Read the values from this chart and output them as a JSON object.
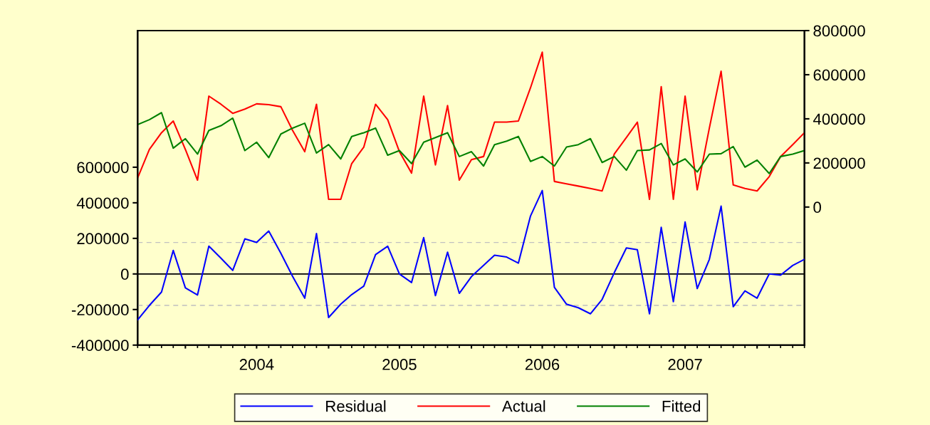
{
  "chart_data": {
    "type": "line",
    "x": [
      "2003-09",
      "2003-10",
      "2003-11",
      "2003-12",
      "2004-01",
      "2004-02",
      "2004-03",
      "2004-04",
      "2004-05",
      "2004-06",
      "2004-07",
      "2004-08",
      "2004-09",
      "2004-10",
      "2004-11",
      "2004-12",
      "2005-01",
      "2005-02",
      "2005-03",
      "2005-04",
      "2005-05",
      "2005-06",
      "2005-07",
      "2005-08",
      "2005-09",
      "2005-10",
      "2005-11",
      "2005-12",
      "2006-01",
      "2006-02",
      "2006-03",
      "2006-04",
      "2006-05",
      "2006-06",
      "2006-07",
      "2006-08",
      "2006-09",
      "2006-10",
      "2006-11",
      "2006-12",
      "2007-01",
      "2007-02",
      "2007-03",
      "2007-04",
      "2007-05",
      "2007-06",
      "2007-07",
      "2007-08",
      "2007-09",
      "2007-10",
      "2007-11",
      "2007-12",
      "2008-01",
      "2008-02",
      "2008-03",
      "2008-04",
      "2008-05"
    ],
    "series": [
      {
        "name": "Residual",
        "color": "#0000ff",
        "values": [
          -258000,
          -177000,
          -102000,
          132000,
          -78000,
          -118000,
          156000,
          88000,
          20000,
          197000,
          177000,
          241000,
          116000,
          -14000,
          -136000,
          227000,
          -245000,
          -170000,
          -116000,
          -68000,
          109000,
          156000,
          0,
          -48000,
          204000,
          -122000,
          122000,
          -109000,
          -15000,
          48000,
          105000,
          95000,
          61000,
          326000,
          469000,
          -75000,
          -170000,
          -190000,
          -224000,
          -143000,
          7000,
          146000,
          136000,
          -224000,
          262000,
          -156000,
          292000,
          -82000,
          82000,
          381000,
          -184000,
          -95000,
          -136000,
          0,
          -7000,
          48000,
          82000
        ]
      },
      {
        "name": "Actual",
        "color": "#ff0000",
        "axis": "y2",
        "values": [
          132000,
          261000,
          337000,
          390000,
          261000,
          122000,
          503000,
          466000,
          425000,
          444000,
          468000,
          464000,
          455000,
          347000,
          251000,
          466000,
          35000,
          35000,
          197000,
          272000,
          466000,
          396000,
          251000,
          154000,
          503000,
          191000,
          460000,
          122000,
          215000,
          229000,
          385000,
          385000,
          390000,
          541000,
          702000,
          116000,
          105000,
          95000,
          84000,
          73000,
          240000,
          315000,
          385000,
          35000,
          546000,
          35000,
          503000,
          78000,
          358000,
          616000,
          100000,
          84000,
          73000,
          138000,
          229000,
          283000,
          337000
        ]
      },
      {
        "name": "Fitted",
        "color": "#008000",
        "axis": "y2",
        "values": [
          374000,
          396000,
          428000,
          267000,
          310000,
          240000,
          347000,
          369000,
          403000,
          256000,
          294000,
          224000,
          331000,
          358000,
          380000,
          245000,
          283000,
          218000,
          320000,
          337000,
          358000,
          235000,
          256000,
          197000,
          294000,
          315000,
          337000,
          229000,
          251000,
          186000,
          283000,
          299000,
          320000,
          207000,
          229000,
          186000,
          272000,
          283000,
          310000,
          202000,
          229000,
          167000,
          256000,
          259000,
          288000,
          191000,
          218000,
          159000,
          240000,
          242000,
          274000,
          181000,
          213000,
          152000,
          229000,
          240000,
          256000
        ]
      }
    ],
    "xlim": [
      "2003-09",
      "2008-05"
    ],
    "xticks": [
      {
        "value": "2004-01",
        "label": null
      },
      {
        "value": "2004-07",
        "label": "2004"
      },
      {
        "value": "2005-01",
        "label": null
      },
      {
        "value": "2005-07",
        "label": "2005"
      },
      {
        "value": "2006-01",
        "label": null
      },
      {
        "value": "2006-07",
        "label": "2006"
      },
      {
        "value": "2007-01",
        "label": null
      },
      {
        "value": "2007-07",
        "label": "2007"
      },
      {
        "value": "2008-01",
        "label": null
      }
    ],
    "ylim": [
      -400000,
      1368000
    ],
    "yticks": [
      -400000,
      -200000,
      0,
      200000,
      400000,
      600000
    ],
    "y2lim": [
      -626000,
      800000
    ],
    "y2ticks": [
      0,
      200000,
      400000,
      600000,
      800000
    ],
    "ref_lines": [
      {
        "axis": "y",
        "value": 0,
        "color": "#000000",
        "line_style": "solid"
      },
      {
        "axis": "y",
        "value": 177000,
        "color": "#c0c0c0",
        "line_style": "dashed"
      },
      {
        "axis": "y",
        "value": -177000,
        "color": "#c0c0c0",
        "line_style": "dashed"
      }
    ],
    "grid": false,
    "legend": "bottom",
    "marker": "none",
    "line_style": "solid"
  }
}
